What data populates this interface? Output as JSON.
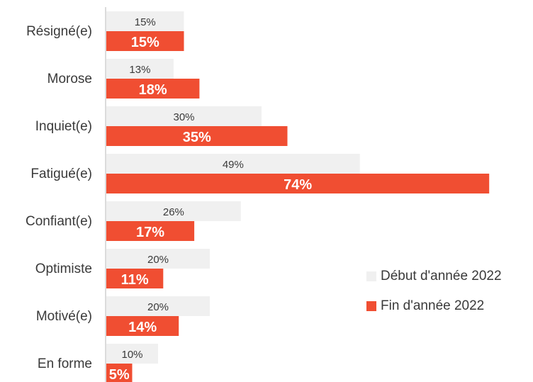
{
  "chart_data": {
    "type": "bar",
    "orientation": "horizontal",
    "categories": [
      "Résigné(e)",
      "Morose",
      "Inquiet(e)",
      "Fatigué(e)",
      "Confiant(e)",
      "Optimiste",
      "Motivé(e)",
      "En forme"
    ],
    "series": [
      {
        "name": "Début d'année 2022",
        "color": "#f0f0f0",
        "values": [
          15,
          13,
          30,
          49,
          26,
          20,
          20,
          10
        ],
        "labels": [
          "15%",
          "13%",
          "30%",
          "49%",
          "26%",
          "20%",
          "20%",
          "10%"
        ]
      },
      {
        "name": "Fin d'année 2022",
        "color": "#f04e32",
        "values": [
          15,
          18,
          35,
          74,
          17,
          11,
          14,
          5
        ],
        "labels": [
          "15%",
          "18%",
          "35%",
          "74%",
          "17%",
          "11%",
          "14%",
          "5%"
        ]
      }
    ],
    "xlim": [
      0,
      80
    ],
    "grid": false,
    "legend_position": "right"
  }
}
